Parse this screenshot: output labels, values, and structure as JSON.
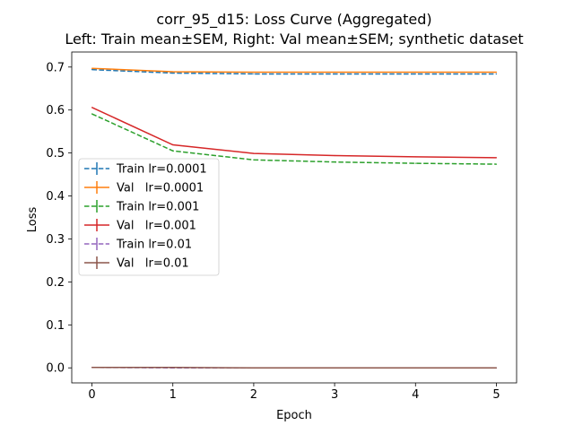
{
  "chart_data": {
    "type": "line",
    "title": "corr_95_d15: Loss Curve (Aggregated)",
    "subtitle": "Left: Train mean±SEM, Right: Val mean±SEM; synthetic dataset",
    "xlabel": "Epoch",
    "ylabel": "Loss",
    "xlim": [
      -0.25,
      5.25
    ],
    "ylim": [
      -0.035,
      0.735
    ],
    "xticks": [
      0,
      1,
      2,
      3,
      4,
      5
    ],
    "yticks": [
      0.0,
      0.1,
      0.2,
      0.3,
      0.4,
      0.5,
      0.6,
      0.7
    ],
    "grid": false,
    "legend_position": "center-left",
    "x": [
      0,
      1,
      2,
      3,
      4,
      5
    ],
    "series": [
      {
        "name": "Train lr=0.0001",
        "color": "#1f77b4",
        "dash": true,
        "values": [
          0.694,
          0.686,
          0.684,
          0.684,
          0.684,
          0.684
        ]
      },
      {
        "name": "Val   lr=0.0001",
        "color": "#ff7f0e",
        "dash": false,
        "values": [
          0.697,
          0.689,
          0.688,
          0.688,
          0.688,
          0.688
        ]
      },
      {
        "name": "Train lr=0.001",
        "color": "#2ca02c",
        "dash": true,
        "values": [
          0.591,
          0.505,
          0.484,
          0.479,
          0.476,
          0.474
        ]
      },
      {
        "name": "Val   lr=0.001",
        "color": "#d62728",
        "dash": false,
        "values": [
          0.606,
          0.519,
          0.499,
          0.494,
          0.491,
          0.489
        ]
      },
      {
        "name": "Train lr=0.01",
        "color": "#9467bd",
        "dash": true,
        "values": [
          0.001,
          0.0,
          0.0,
          0.0,
          0.0,
          0.0
        ]
      },
      {
        "name": "Val   lr=0.01",
        "color": "#8c564b",
        "dash": false,
        "values": [
          0.001,
          0.001,
          0.0,
          0.0,
          0.0,
          0.0
        ]
      }
    ]
  }
}
